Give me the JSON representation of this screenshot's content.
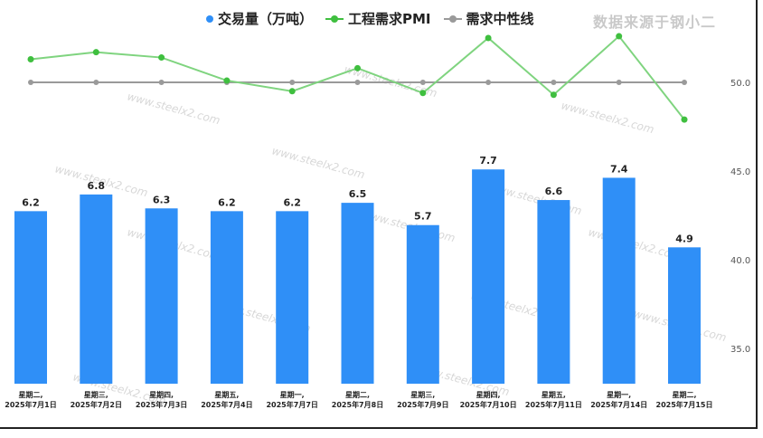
{
  "source_label": "数据来源于钢小二",
  "watermark_text": "www.steelx2.com",
  "colors": {
    "bar": "#2f8ff7",
    "pmi_line": "#7fd47f",
    "pmi_dot": "#3fbf3f",
    "neutral": "#9a9a9a"
  },
  "chart_data": {
    "type": "bar",
    "categories": [
      [
        "星期二,",
        "2025年7月1日"
      ],
      [
        "星期三,",
        "2025年7月2日"
      ],
      [
        "星期四,",
        "2025年7月3日"
      ],
      [
        "星期五,",
        "2025年7月4日"
      ],
      [
        "星期一,",
        "2025年7月7日"
      ],
      [
        "星期二,",
        "2025年7月8日"
      ],
      [
        "星期三,",
        "2025年7月9日"
      ],
      [
        "星期四,",
        "2025年7月10日"
      ],
      [
        "星期五,",
        "2025年7月11日"
      ],
      [
        "星期一,",
        "2025年7月14日"
      ],
      [
        "星期二,",
        "2025年7月15日"
      ]
    ],
    "series": [
      {
        "name": "交易量（万吨）",
        "type": "bar",
        "values": [
          6.2,
          6.8,
          6.3,
          6.2,
          6.2,
          6.5,
          5.7,
          7.7,
          6.6,
          7.4,
          4.9
        ]
      },
      {
        "name": "工程需求PMI",
        "type": "line",
        "axis": "right",
        "values": [
          51.3,
          51.7,
          51.4,
          50.1,
          49.5,
          50.8,
          49.4,
          52.5,
          49.3,
          52.6,
          47.9
        ]
      },
      {
        "name": "需求中性线",
        "type": "line",
        "axis": "right",
        "values": [
          50,
          50,
          50,
          50,
          50,
          50,
          50,
          50,
          50,
          50,
          50
        ]
      }
    ],
    "y_right": {
      "ticks": [
        "50.0",
        "45.0",
        "40.0",
        "35.0"
      ],
      "tick_values": [
        50,
        45,
        40,
        35
      ]
    },
    "legend_position": "top-center"
  }
}
